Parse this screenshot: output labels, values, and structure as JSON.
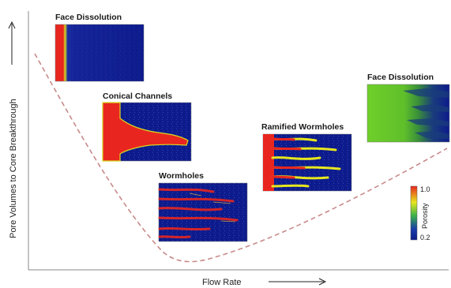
{
  "y_axis_label": "Pore Volumes to Core Breakthrough",
  "x_axis_label": "Flow Rate",
  "panels": {
    "face_dissolution_low": "Face Dissolution",
    "conical_channels": "Conical Channels",
    "wormholes": "Wormholes",
    "ramified_wormholes": "Ramified Wormholes",
    "face_dissolution_high": "Face Dissolution"
  },
  "colorbar": {
    "label": "Porosity",
    "max": "1.0",
    "min": "0.2"
  },
  "colors": {
    "curve": "#c98a8a",
    "background_rock": "#0d1b8c",
    "dissolved": "#e8261f",
    "front": "#e6e61e",
    "face_high": "#5fbf2a"
  }
}
